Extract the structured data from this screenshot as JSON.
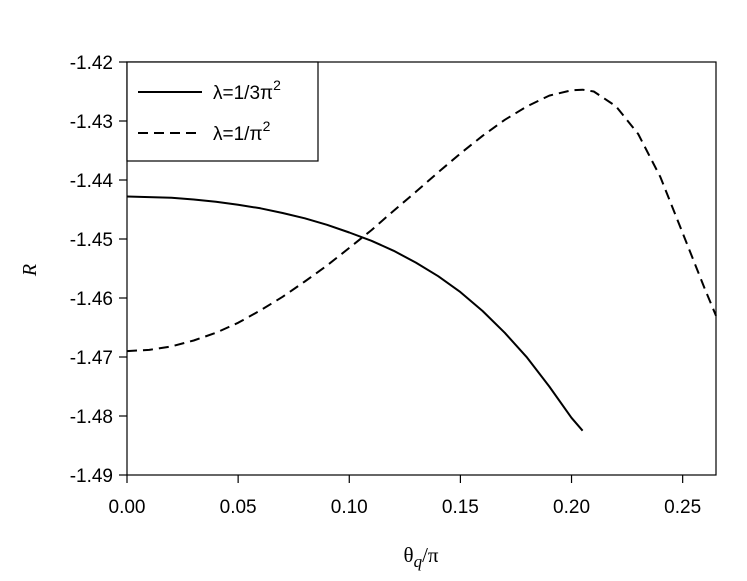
{
  "chart_data": {
    "type": "line",
    "title": "",
    "xlabel": "θq/π",
    "xlabel_parts": {
      "main": "θ",
      "sub": "q",
      "tail": "/π"
    },
    "ylabel": "R",
    "xlim": [
      0,
      0.265
    ],
    "ylim": [
      -1.49,
      -1.42
    ],
    "xticks": [
      0.0,
      0.05,
      0.1,
      0.15,
      0.2,
      0.25
    ],
    "xtick_labels": [
      "0.00",
      "0.05",
      "0.10",
      "0.15",
      "0.20",
      "0.25"
    ],
    "yticks": [
      -1.42,
      -1.43,
      -1.44,
      -1.45,
      -1.46,
      -1.47,
      -1.48,
      -1.49
    ],
    "ytick_labels": [
      "-1.42",
      "-1.43",
      "-1.44",
      "-1.45",
      "-1.46",
      "-1.47",
      "-1.48",
      "-1.49"
    ],
    "grid": false,
    "legend_position": "top-left",
    "series": [
      {
        "name": "λ=1/3π2",
        "name_parts": {
          "main": "λ=1/3π",
          "sup": "2"
        },
        "style": "solid",
        "color": "#000000",
        "x": [
          0.0,
          0.01,
          0.02,
          0.03,
          0.04,
          0.05,
          0.06,
          0.07,
          0.08,
          0.09,
          0.1,
          0.11,
          0.12,
          0.13,
          0.14,
          0.15,
          0.16,
          0.17,
          0.18,
          0.19,
          0.2,
          0.205
        ],
        "y": [
          -1.4428,
          -1.4429,
          -1.443,
          -1.4433,
          -1.4437,
          -1.4442,
          -1.4448,
          -1.4456,
          -1.4465,
          -1.4476,
          -1.4489,
          -1.4503,
          -1.452,
          -1.454,
          -1.4563,
          -1.459,
          -1.4622,
          -1.4659,
          -1.4701,
          -1.475,
          -1.4803,
          -1.4825
        ]
      },
      {
        "name": "λ=1/π2",
        "name_parts": {
          "main": "λ=1/π",
          "sup": "2"
        },
        "style": "dashed",
        "color": "#000000",
        "x": [
          0.0,
          0.01,
          0.02,
          0.03,
          0.04,
          0.05,
          0.06,
          0.07,
          0.08,
          0.09,
          0.1,
          0.11,
          0.12,
          0.13,
          0.14,
          0.15,
          0.16,
          0.17,
          0.18,
          0.19,
          0.2,
          0.205,
          0.21,
          0.22,
          0.23,
          0.24,
          0.25,
          0.26,
          0.265
        ],
        "y": [
          -1.469,
          -1.4688,
          -1.4682,
          -1.4672,
          -1.4659,
          -1.4642,
          -1.4621,
          -1.4598,
          -1.4572,
          -1.4545,
          -1.4515,
          -1.4485,
          -1.4452,
          -1.442,
          -1.4387,
          -1.4355,
          -1.4325,
          -1.4298,
          -1.4275,
          -1.4257,
          -1.4248,
          -1.4247,
          -1.425,
          -1.4275,
          -1.4322,
          -1.4395,
          -1.449,
          -1.4585,
          -1.463
        ]
      }
    ]
  }
}
